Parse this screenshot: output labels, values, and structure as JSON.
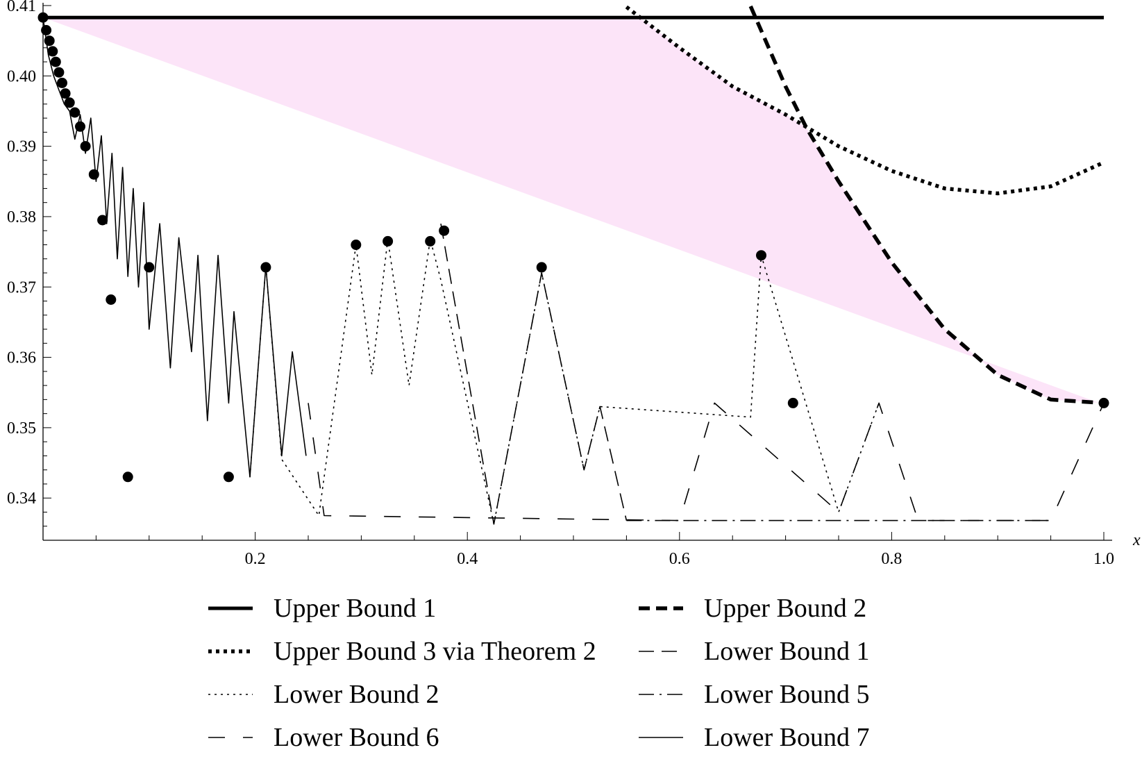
{
  "chart_data": {
    "type": "line",
    "title": "",
    "xlabel": "x",
    "ylabel": "",
    "xlim": [
      0,
      1
    ],
    "ylim": [
      0.334,
      0.41
    ],
    "x_ticks": [
      "0.2",
      "0.4",
      "0.6",
      "0.8",
      "1.0"
    ],
    "x_tick_values": [
      0.2,
      0.4,
      0.6,
      0.8,
      1.0
    ],
    "y_ticks": [
      "0.34",
      "0.35",
      "0.36",
      "0.37",
      "0.38",
      "0.39",
      "0.40",
      "0.41"
    ],
    "y_tick_values": [
      0.34,
      0.35,
      0.36,
      0.37,
      0.38,
      0.39,
      0.4,
      0.41
    ],
    "grid": false,
    "legend_position": "bottom",
    "fill_color": "#fce4f8",
    "series": [
      {
        "name": "Upper Bound 1",
        "style": "solid-thick",
        "x": [
          0,
          1
        ],
        "y": [
          0.4083,
          0.4083
        ]
      },
      {
        "name": "Upper Bound 2",
        "style": "dashed-thick",
        "x": [
          0.667,
          0.7,
          0.72,
          0.75,
          0.8,
          0.85,
          0.9,
          0.95,
          1.0
        ],
        "y": [
          0.4099,
          0.3985,
          0.3925,
          0.385,
          0.3735,
          0.364,
          0.3575,
          0.354,
          0.3535
        ]
      },
      {
        "name": "Upper Bound 3 via Theorem 2",
        "style": "dotted-thick",
        "x": [
          0.55,
          0.6,
          0.65,
          0.7,
          0.75,
          0.8,
          0.85,
          0.9,
          0.95,
          1.0
        ],
        "y": [
          0.4098,
          0.404,
          0.3985,
          0.3945,
          0.39,
          0.3865,
          0.384,
          0.3833,
          0.3843,
          0.3877
        ]
      },
      {
        "name": "Lower Bound 1",
        "style": "long-dash",
        "x": [
          0.375,
          0.425,
          0.47,
          0.51,
          0.525,
          0.55
        ],
        "y": [
          0.379,
          0.3363,
          0.372,
          0.344,
          0.353,
          0.3368
        ]
      },
      {
        "name": "Lower Bound 2",
        "style": "fine-dot",
        "x": [
          0.195,
          0.21,
          0.225,
          0.26,
          0.295,
          0.31,
          0.325,
          0.345,
          0.365,
          0.375,
          0.425,
          0.47,
          0.51,
          0.525,
          0.667,
          0.677,
          0.75,
          0.788
        ],
        "y": [
          0.343,
          0.373,
          0.3455,
          0.3375,
          0.376,
          0.3575,
          0.3768,
          0.356,
          0.3768,
          0.371,
          0.3363,
          0.372,
          0.344,
          0.353,
          0.3515,
          0.3745,
          0.338,
          0.3535
        ]
      },
      {
        "name": "Lower Bound 5",
        "style": "dash-dot",
        "x": [
          0.55,
          0.6,
          0.825,
          0.95
        ],
        "y": [
          0.3368,
          0.3368,
          0.3368,
          0.3368
        ]
      },
      {
        "name": "Lower Bound 6",
        "style": "dash-gap",
        "x": [
          0.25,
          0.265,
          0.6,
          0.633,
          0.75,
          0.788,
          0.825,
          0.95,
          1.0
        ],
        "y": [
          0.3535,
          0.3375,
          0.3368,
          0.3535,
          0.338,
          0.3535,
          0.3368,
          0.3368,
          0.3535
        ]
      },
      {
        "name": "Lower Bound 7",
        "style": "solid-thin",
        "x": [
          0,
          0.005,
          0.01,
          0.015,
          0.02,
          0.025,
          0.03,
          0.035,
          0.04,
          0.045,
          0.05,
          0.055,
          0.06,
          0.065,
          0.07,
          0.075,
          0.08,
          0.085,
          0.09,
          0.095,
          0.1,
          0.11,
          0.12,
          0.128,
          0.14,
          0.146,
          0.155,
          0.165,
          0.175,
          0.18,
          0.195,
          0.21,
          0.225,
          0.235,
          0.248
        ],
        "y": [
          0.4083,
          0.403,
          0.4,
          0.398,
          0.396,
          0.395,
          0.391,
          0.3945,
          0.389,
          0.394,
          0.385,
          0.3915,
          0.379,
          0.389,
          0.374,
          0.387,
          0.3715,
          0.384,
          0.37,
          0.382,
          0.364,
          0.379,
          0.3585,
          0.377,
          0.3608,
          0.3745,
          0.351,
          0.3745,
          0.3535,
          0.3665,
          0.343,
          0.373,
          0.346,
          0.3608,
          0.346
        ]
      }
    ],
    "points": {
      "name": "Markers",
      "x": [
        0,
        0.003,
        0.006,
        0.009,
        0.012,
        0.015,
        0.018,
        0.021,
        0.025,
        0.03,
        0.035,
        0.04,
        0.048,
        0.056,
        0.064,
        0.08,
        0.1,
        0.175,
        0.21,
        0.295,
        0.325,
        0.365,
        0.378,
        0.47,
        0.677,
        0.707,
        1.0
      ],
      "y": [
        0.4083,
        0.4065,
        0.405,
        0.4035,
        0.402,
        0.4005,
        0.399,
        0.3975,
        0.3962,
        0.3948,
        0.3928,
        0.39,
        0.386,
        0.3795,
        0.3682,
        0.343,
        0.3728,
        0.343,
        0.3728,
        0.376,
        0.3765,
        0.3765,
        0.378,
        0.3728,
        0.3745,
        0.3535,
        0.3535
      ]
    }
  },
  "legend": {
    "items": [
      {
        "label": "Upper Bound 1",
        "style": "solid-thick"
      },
      {
        "label": "Upper Bound 2",
        "style": "dashed-thick"
      },
      {
        "label": "Upper Bound 3 via Theorem 2",
        "style": "dotted-thick"
      },
      {
        "label": "Lower Bound 1",
        "style": "long-dash"
      },
      {
        "label": "Lower Bound 2",
        "style": "fine-dot"
      },
      {
        "label": "Lower Bound 5",
        "style": "dash-dot"
      },
      {
        "label": "Lower Bound 6",
        "style": "dash-gap"
      },
      {
        "label": "Lower Bound 7",
        "style": "solid-thin"
      }
    ]
  }
}
